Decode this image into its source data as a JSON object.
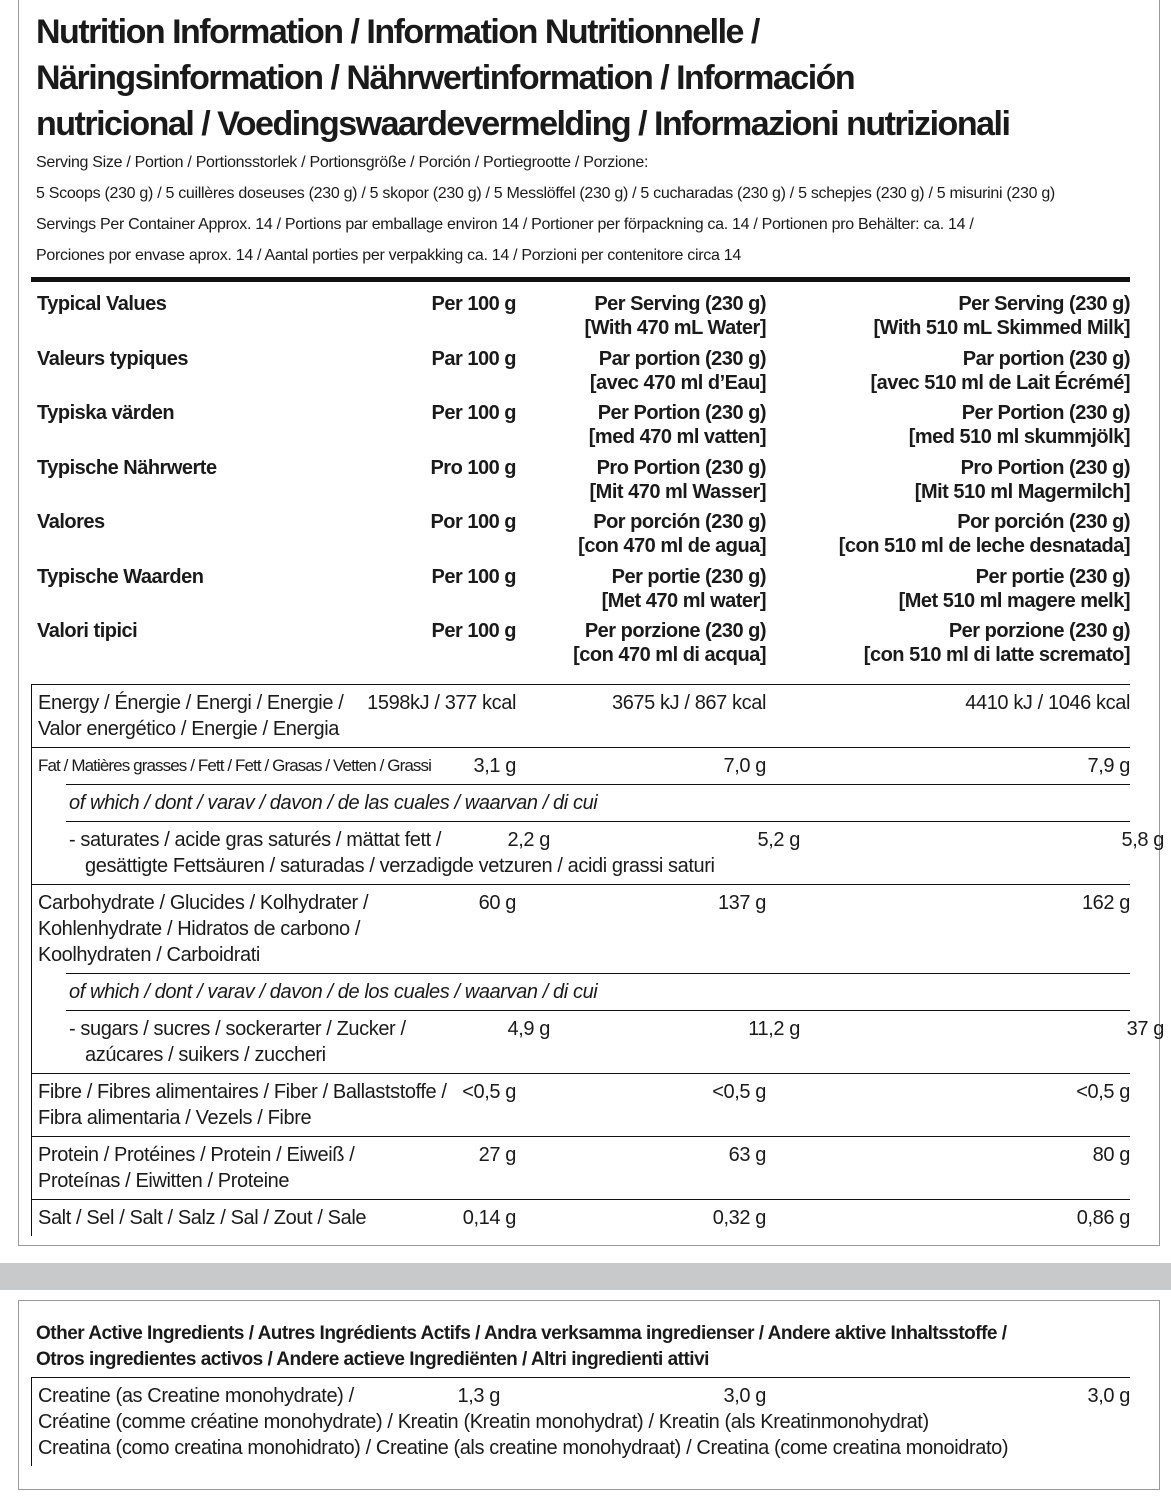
{
  "title": [
    "Nutrition Information / Information Nutritionnelle /",
    "Näringsinformation / Nährwertinformation / Información",
    "nutricional / Voedingswaardevermelding / Informazioni nutrizionali"
  ],
  "serving": [
    "Serving Size / Portion / Portionsstorlek / Portionsgröße / Porción / Portiegrootte / Porzione:",
    "5 Scoops (230 g) / 5 cuillères doseuses (230 g) / 5 skopor (230 g) / 5 Messlöffel (230 g) / 5 cucharadas (230 g) / 5 schepjes (230 g) / 5 misurini (230 g)",
    "Servings Per Container Approx. 14 / Portions par emballage environ 14 / Portioner per förpackning ca. 14 / Portionen pro Behälter: ca. 14 /",
    "Porciones por envase aprox. 14 / Aantal porties per verpakking ca. 14 / Porzioni per contenitore circa 14"
  ],
  "header_rows": [
    {
      "label": "Typical Values",
      "per_100": "Per 100 g",
      "water": [
        "Per Serving (230 g)",
        "[With 470 mL Water]"
      ],
      "milk": [
        "Per Serving (230 g)",
        "[With 510 mL Skimmed Milk]"
      ]
    },
    {
      "label": "Valeurs typiques",
      "per_100": "Par 100 g",
      "water": [
        "Par portion (230 g)",
        "[avec 470 ml d’Eau]"
      ],
      "milk": [
        "Par portion (230 g)",
        "[avec 510 ml de Lait Écrémé]"
      ]
    },
    {
      "label": "Typiska värden",
      "per_100": "Per 100 g",
      "water": [
        "Per Portion  (230 g)",
        "[med 470 ml vatten]"
      ],
      "milk": [
        "Per Portion  (230 g)",
        "[med 510 ml skummjölk]"
      ]
    },
    {
      "label": "Typische Nährwerte",
      "per_100": "Pro 100 g",
      "water": [
        "Pro Portion (230 g)",
        "[Mit 470 ml Wasser]"
      ],
      "milk": [
        "Pro Portion (230 g)",
        "[Mit 510 ml Magermilch]"
      ]
    },
    {
      "label": "Valores",
      "per_100": "Por 100 g",
      "water": [
        "Por porción (230 g)",
        "[con 470 ml de agua]"
      ],
      "milk": [
        "Por porción (230 g)",
        "[con 510 ml de leche desnatada]"
      ]
    },
    {
      "label": "Typische Waarden",
      "per_100": "Per 100 g",
      "water": [
        "Per portie (230 g)",
        "[Met 470 ml water]"
      ],
      "milk": [
        "Per portie (230 g)",
        "[Met 510 ml magere melk]"
      ]
    },
    {
      "label": "Valori tipici",
      "per_100": "Per 100 g",
      "water": [
        "Per porzione (230 g)",
        "[con 470 ml di acqua]"
      ],
      "milk": [
        "Per porzione (230 g)",
        "[con 510 ml di latte scremato]"
      ]
    }
  ],
  "nutrients": [
    [
      {
        "label": [
          "Energy / Énergie / Energi / Energie /",
          "Valor energético / Energie / Energia"
        ],
        "per_100": "1598kJ / 377 kcal",
        "water": "3675 kJ / 867 kcal",
        "milk": "4410 kJ / 1046 kcal"
      }
    ],
    [
      {
        "label": [
          "Fat / Matières grasses / Fett / Fett / Grasas / Vetten / Grassi"
        ],
        "per_100": "3,1 g",
        "water": "7,0 g",
        "milk": "7,9 g"
      },
      {
        "note": "of which / dont / varav / davon / de las cuales / waarvan / di cui"
      },
      {
        "label": [
          "-  saturates / acide gras saturés / mättat fett /",
          "gesättigte Fettsäuren / saturadas / verzadigde vetzuren / acidi grassi saturi"
        ],
        "per_100": "2,2 g",
        "water": "5,2 g",
        "milk": "5,8 g"
      }
    ],
    [
      {
        "label": [
          "Carbohydrate / Glucides / Kolhydrater /",
          "Kohlenhydrate / Hidratos de carbono /",
          "Koolhydraten / Carboidrati"
        ],
        "per_100": "60 g",
        "water": "137 g",
        "milk": "162 g"
      },
      {
        "note": "of which / dont / varav / davon / de los cuales / waarvan / di cui"
      },
      {
        "label": [
          "-  sugars / sucres / sockerarter / Zucker /",
          "azúcares / suikers / zuccheri"
        ],
        "per_100": "4,9 g",
        "water": "11,2 g",
        "milk": "37 g"
      }
    ],
    [
      {
        "label": [
          "Fibre / Fibres alimentaires / Fiber / Ballaststoffe /",
          "Fibra alimentaria / Vezels / Fibre"
        ],
        "per_100": "<0,5 g",
        "water": "<0,5 g",
        "milk": "<0,5 g"
      }
    ],
    [
      {
        "label": [
          "Protein / Protéines / Protein / Eiweiß /",
          "Proteínas / Eiwitten / Proteine"
        ],
        "per_100": "27 g",
        "water": "63 g",
        "milk": "80 g"
      }
    ],
    [
      {
        "label": [
          "Salt / Sel / Salt / Salz / Sal / Zout / Sale"
        ],
        "per_100": "0,14 g",
        "water": "0,32 g",
        "milk": "0,86 g"
      }
    ]
  ],
  "other_active": {
    "title": [
      "Other Active Ingredients / Autres Ingrédients Actifs / Andra verksamma ingredienser / Andere aktive Inhaltsstoffe /",
      "Otros ingredientes activos / Andere actieve Ingrediënten / Altri ingredienti attivi"
    ],
    "rows": [
      {
        "label": [
          "Creatine (as Creatine monohydrate) /",
          "Créatine (comme créatine monohydrate) / Kreatin (Kreatin monohydrat) / Kreatin (als Kreatinmonohydrat)",
          "Creatina (como creatina monohidrato) / Creatine (als creatine monohydraat) / Creatina (come creatina monoidrato)"
        ],
        "per_100": "1,3 g",
        "water": "3,0 g",
        "milk": "3,0 g"
      }
    ]
  }
}
